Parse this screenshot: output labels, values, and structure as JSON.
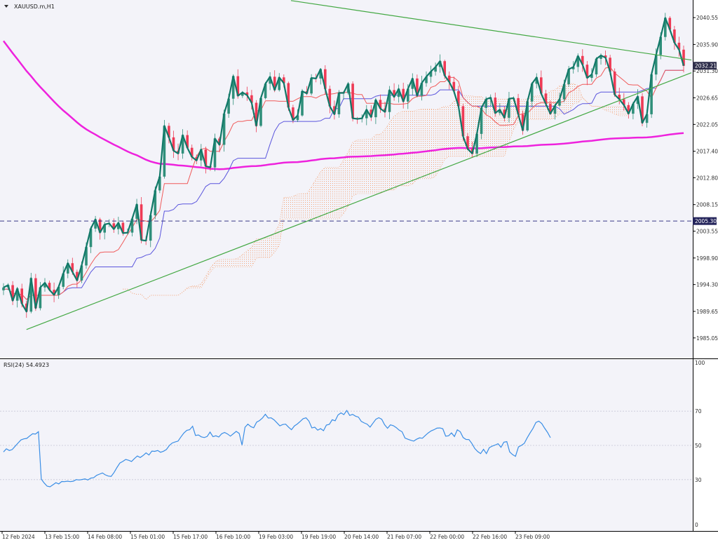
{
  "window_title": "XAUUSD.m,H1",
  "indicator_label": "RSI(24) 54.4923",
  "colors": {
    "background": "#f3f3f9",
    "grid": "#c8c8d8",
    "bull_candle": "#2f8f7a",
    "bear_candle": "#ee3a55",
    "close_line": "#117868",
    "ma200": "#ee22dd",
    "tenkan": "#f05a5a",
    "kijun": "#5a55dd",
    "cloud": "#f3a57a",
    "trendline": "#43a843",
    "hline": "#3a3a88",
    "rsi_line": "#3a8ee6",
    "price_tag_current": "#2d2d4a",
    "price_tag_level": "#23235a"
  },
  "chart_data": [
    {
      "type": "candlestick",
      "symbol": "XAUUSD.m",
      "timeframe": "H1",
      "ylim": [
        1981.5,
        2043.6
      ],
      "y_ticks": [
        2040.55,
        2035.9,
        2031.3,
        2026.65,
        2022.05,
        2017.4,
        2012.8,
        2008.15,
        2003.55,
        1998.9,
        1994.3,
        1989.65,
        1985.05
      ],
      "x_tick_labels": [
        "12 Feb 2024",
        "13 Feb 15:00",
        "14 Feb 08:00",
        "15 Feb 01:00",
        "15 Feb 17:00",
        "16 Feb 10:00",
        "19 Feb 03:00",
        "19 Feb 19:00",
        "20 Feb 14:00",
        "21 Feb 07:00",
        "22 Feb 00:00",
        "22 Feb 16:00",
        "23 Feb 09:00"
      ],
      "current_price": 2032.21,
      "horizontal_level": 2005.3,
      "close_overlay_line": [
        1993.8,
        1994.2,
        1991.5,
        1993.6,
        1991.0,
        1989.6,
        1995.4,
        1990.2,
        1993.8,
        1994.6,
        1993.4,
        1992.5,
        1993.9,
        1996.2,
        1998.0,
        1996.5,
        1995.0,
        1997.6,
        2000.8,
        2004.0,
        2005.6,
        2003.3,
        2004.7,
        2004.9,
        2003.9,
        2005.0,
        2003.2,
        2003.3,
        2005.7,
        2008.2,
        2002.0,
        2001.9,
        2006.3,
        2010.6,
        2013.0,
        2021.8,
        2019.8,
        2017.5,
        2017.0,
        2020.2,
        2018.0,
        2016.4,
        2015.8,
        2017.7,
        2014.8,
        2014.6,
        2019.6,
        2018.5,
        2023.9,
        2026.5,
        2030.4,
        2027.0,
        2027.6,
        2027.1,
        2025.8,
        2021.8,
        2026.6,
        2029.1,
        2030.3,
        2028.0,
        2030.2,
        2029.2,
        2025.0,
        2022.8,
        2023.6,
        2027.8,
        2027.4,
        2030.1,
        2030.0,
        2031.6,
        2028.2,
        2025.2,
        2023.8,
        2027.5,
        2027.5,
        2029.1,
        2023.1,
        2023.0,
        2023.1,
        2024.6,
        2023.3,
        2026.3,
        2024.8,
        2024.2,
        2028.0,
        2026.8,
        2028.2,
        2026.0,
        2028.2,
        2030.0,
        2027.0,
        2029.2,
        2030.3,
        2031.2,
        2032.0,
        2033.0,
        2030.5,
        2029.4,
        2027.8,
        2025.2,
        2020.0,
        2017.8,
        2017.0,
        2020.4,
        2024.9,
        2026.4,
        2026.7,
        2024.0,
        2024.6,
        2023.2,
        2026.5,
        2026.6,
        2023.8,
        2021.0,
        2026.0,
        2029.1,
        2030.2,
        2027.4,
        2025.6,
        2023.9,
        2025.3,
        2026.4,
        2029.0,
        2031.6,
        2032.0,
        2033.9,
        2032.4,
        2030.1,
        2030.7,
        2033.4,
        2034.0,
        2033.6,
        2031.2,
        2027.2,
        2026.4,
        2025.4,
        2023.9,
        2025.6,
        2026.9,
        2022.3,
        2023.8,
        2030.7,
        2034.1,
        2037.2,
        2040.5,
        2038.5,
        2036.2,
        2035.0,
        2032.2
      ],
      "rsi": {
        "period": 24,
        "current": 54.4923,
        "ylim": [
          0,
          100
        ],
        "levels": [
          70,
          50,
          30
        ],
        "values": [
          46.2,
          48.0,
          47.0,
          47.6,
          49.5,
          51.4,
          53.2,
          53.8,
          54.1,
          55.5,
          56.8,
          56.6,
          58.0,
          30.3,
          28.0,
          26.2,
          25.8,
          27.0,
          28.2,
          27.5,
          28.9,
          28.8,
          29.1,
          28.8,
          29.1,
          30.0,
          29.8,
          30.1,
          30.4,
          29.8,
          30.9,
          31.1,
          32.5,
          33.2,
          33.9,
          32.8,
          32.1,
          31.9,
          34.2,
          37.1,
          39.7,
          40.6,
          41.8,
          41.3,
          40.6,
          42.3,
          43.8,
          42.9,
          44.1,
          45.6,
          44.4,
          46.7,
          46.5,
          47.0,
          46.0,
          46.6,
          47.6,
          49.9,
          51.4,
          52.0,
          52.5,
          55.0,
          57.2,
          58.8,
          59.2,
          61.2,
          55.8,
          56.1,
          55.0,
          54.6,
          55.2,
          57.8,
          55.1,
          55.6,
          54.9,
          56.8,
          57.6,
          56.7,
          55.4,
          56.8,
          58.2,
          57.0,
          50.2,
          60.6,
          62.4,
          61.0,
          60.3,
          63.6,
          64.5,
          66.0,
          68.2,
          66.0,
          66.1,
          64.9,
          63.2,
          61.4,
          62.2,
          62.4,
          60.6,
          59.2,
          61.4,
          62.5,
          64.0,
          65.6,
          66.1,
          64.2,
          60.2,
          60.6,
          58.9,
          59.8,
          58.6,
          61.9,
          62.3,
          65.0,
          64.4,
          67.8,
          69.0,
          68.0,
          70.4,
          67.5,
          68.1,
          67.1,
          66.5,
          64.0,
          63.1,
          62.4,
          60.7,
          63.0,
          65.3,
          66.2,
          65.3,
          62.1,
          60.0,
          62.0,
          61.5,
          60.4,
          58.9,
          58.0,
          54.3,
          53.6,
          53.0,
          52.5,
          53.6,
          54.4,
          54.2,
          55.8,
          57.3,
          58.5,
          59.2,
          60.1,
          60.2,
          59.7,
          55.4,
          55.6,
          57.3,
          55.2,
          59.1,
          58.0,
          54.6,
          53.5,
          53.4,
          51.1,
          48.2,
          46.4,
          45.2,
          47.7,
          45.2,
          48.7,
          49.6,
          50.2,
          51.0,
          48.9,
          51.9,
          52.2,
          46.2,
          44.6,
          43.6,
          49.1,
          50.0,
          51.2,
          54.4,
          57.3,
          59.9,
          63.4,
          64.2,
          62.8,
          60.1,
          57.6,
          54.5
        ]
      }
    }
  ]
}
